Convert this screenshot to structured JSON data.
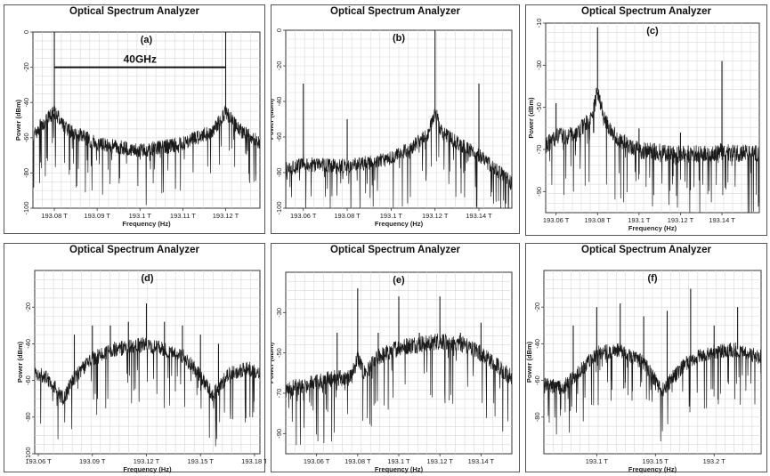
{
  "window_title": "Optical Spectrum Analyzer",
  "chart_data": [
    {
      "type": "line",
      "panel_label": "(a)",
      "title": "Optical Spectrum Analyzer",
      "xlabel": "Frequency (Hz)",
      "ylabel": "Power (dBm)",
      "xlim": [
        193.075,
        193.128
      ],
      "ylim": [
        -100,
        0
      ],
      "xticks": [
        193.08,
        193.09,
        193.1,
        193.11,
        193.12
      ],
      "xtick_labels": [
        "193.08 T",
        "193.09 T",
        "193.1 T",
        "193.11 T",
        "193.12 T"
      ],
      "yticks": [
        0,
        -20,
        -40,
        -60,
        -80,
        -100
      ],
      "ytick_labels": [
        "0",
        "-20",
        "-40",
        "-60",
        "-80",
        "-100"
      ],
      "grid": true,
      "noise_floor": [
        [
          193.075,
          -58
        ],
        [
          193.08,
          -45
        ],
        [
          193.083,
          -55
        ],
        [
          193.09,
          -63
        ],
        [
          193.1,
          -67
        ],
        [
          193.11,
          -63
        ],
        [
          193.117,
          -56
        ],
        [
          193.12,
          -45
        ],
        [
          193.123,
          -55
        ],
        [
          193.128,
          -62
        ]
      ],
      "peaks": [
        {
          "x": 193.08,
          "y": 0
        },
        {
          "x": 193.12,
          "y": 0
        }
      ],
      "annotation": {
        "text": "40GHz",
        "from": 193.08,
        "to": 193.12,
        "y": -20
      }
    },
    {
      "type": "line",
      "panel_label": "(b)",
      "title": "Optical Spectrum Analyzer",
      "xlabel": "Frequency (Hz)",
      "ylabel": "Power (dBm)",
      "xlim": [
        193.052,
        193.155
      ],
      "ylim": [
        -100,
        0
      ],
      "xticks": [
        193.06,
        193.08,
        193.1,
        193.12,
        193.14
      ],
      "xtick_labels": [
        "193.06 T",
        "193.08 T",
        "193.1 T",
        "193.12 T",
        "193.14 T"
      ],
      "yticks": [
        0,
        -20,
        -40,
        -60,
        -80,
        -100
      ],
      "ytick_labels": [
        "0",
        "-20",
        "-40",
        "-60",
        "-80",
        "-100"
      ],
      "grid": true,
      "noise_floor": [
        [
          193.052,
          -78
        ],
        [
          193.06,
          -75
        ],
        [
          193.08,
          -76
        ],
        [
          193.1,
          -72
        ],
        [
          193.11,
          -65
        ],
        [
          193.117,
          -58
        ],
        [
          193.12,
          -45
        ],
        [
          193.123,
          -57
        ],
        [
          193.13,
          -63
        ],
        [
          193.14,
          -70
        ],
        [
          193.15,
          -80
        ],
        [
          193.155,
          -86
        ]
      ],
      "peaks": [
        {
          "x": 193.06,
          "y": -30
        },
        {
          "x": 193.08,
          "y": -50
        },
        {
          "x": 193.12,
          "y": 0
        },
        {
          "x": 193.14,
          "y": -30
        }
      ]
    },
    {
      "type": "line",
      "panel_label": "(c)",
      "title": "Optical Spectrum Analyzer",
      "xlabel": "Frequency (Hz)",
      "ylabel": "Power (dBm)",
      "xlim": [
        193.055,
        193.158
      ],
      "ylim": [
        -100,
        -10
      ],
      "xticks": [
        193.06,
        193.08,
        193.1,
        193.12,
        193.14
      ],
      "xtick_labels": [
        "193.06 T",
        "193.08 T",
        "193.1 T",
        "193.12 T",
        "193.14 T"
      ],
      "yticks": [
        -10,
        -30,
        -50,
        -70,
        -90
      ],
      "ytick_labels": [
        "-10",
        "-30",
        "-50",
        "-70",
        "-90"
      ],
      "grid": true,
      "noise_floor": [
        [
          193.055,
          -68
        ],
        [
          193.06,
          -64
        ],
        [
          193.07,
          -62
        ],
        [
          193.077,
          -55
        ],
        [
          193.08,
          -42
        ],
        [
          193.083,
          -55
        ],
        [
          193.09,
          -65
        ],
        [
          193.1,
          -70
        ],
        [
          193.12,
          -72
        ],
        [
          193.14,
          -71
        ],
        [
          193.158,
          -72
        ]
      ],
      "peaks": [
        {
          "x": 193.06,
          "y": -48
        },
        {
          "x": 193.08,
          "y": -12
        },
        {
          "x": 193.1,
          "y": -60
        },
        {
          "x": 193.12,
          "y": -62
        },
        {
          "x": 193.14,
          "y": -28
        }
      ]
    },
    {
      "type": "line",
      "panel_label": "(d)",
      "title": "Optical Spectrum Analyzer",
      "xlabel": "Frequency (Hz)",
      "ylabel": "Power (dBm)",
      "xlim": [
        193.058,
        193.183
      ],
      "ylim": [
        -100,
        0
      ],
      "xticks": [
        193.06,
        193.09,
        193.12,
        193.15,
        193.18
      ],
      "xtick_labels": [
        "193.06 T",
        "193.09 T",
        "193.12 T",
        "193.15 T",
        "193.18 T"
      ],
      "yticks": [
        -20,
        -40,
        -60,
        -80,
        -100
      ],
      "ytick_labels": [
        "-20",
        "-40",
        "-60",
        "-80",
        "-100"
      ],
      "grid": true,
      "noise_floor": [
        [
          193.058,
          -56
        ],
        [
          193.065,
          -58
        ],
        [
          193.07,
          -65
        ],
        [
          193.074,
          -70
        ],
        [
          193.08,
          -58
        ],
        [
          193.09,
          -48
        ],
        [
          193.1,
          -43
        ],
        [
          193.12,
          -40
        ],
        [
          193.14,
          -46
        ],
        [
          193.15,
          -57
        ],
        [
          193.157,
          -68
        ],
        [
          193.165,
          -57
        ],
        [
          193.175,
          -53
        ],
        [
          193.183,
          -55
        ]
      ],
      "peaks": [
        {
          "x": 193.08,
          "y": -35
        },
        {
          "x": 193.09,
          "y": -30
        },
        {
          "x": 193.1,
          "y": -30
        },
        {
          "x": 193.11,
          "y": -28
        },
        {
          "x": 193.12,
          "y": -18
        },
        {
          "x": 193.13,
          "y": -28
        },
        {
          "x": 193.14,
          "y": -30
        },
        {
          "x": 193.15,
          "y": -35
        },
        {
          "x": 193.16,
          "y": -40
        }
      ]
    },
    {
      "type": "line",
      "panel_label": "(e)",
      "title": "Optical Spectrum Analyzer",
      "xlabel": "Frequency (Hz)",
      "ylabel": "Power (dBm)",
      "xlim": [
        193.045,
        193.155
      ],
      "ylim": [
        -100,
        -10
      ],
      "xticks": [
        193.06,
        193.08,
        193.1,
        193.12,
        193.14
      ],
      "xtick_labels": [
        "193.06 T",
        "193.08 T",
        "193.1 T",
        "193.12 T",
        "193.14 T"
      ],
      "yticks": [
        -30,
        -50,
        -70,
        -90
      ],
      "ytick_labels": [
        "-30",
        "-50",
        "-70",
        "-90"
      ],
      "grid": true,
      "noise_floor": [
        [
          193.045,
          -68
        ],
        [
          193.06,
          -64
        ],
        [
          193.07,
          -62
        ],
        [
          193.077,
          -62
        ],
        [
          193.08,
          -52
        ],
        [
          193.083,
          -60
        ],
        [
          193.09,
          -52
        ],
        [
          193.1,
          -47
        ],
        [
          193.12,
          -44
        ],
        [
          193.13,
          -45
        ],
        [
          193.14,
          -50
        ],
        [
          193.15,
          -58
        ],
        [
          193.155,
          -62
        ]
      ],
      "peaks": [
        {
          "x": 193.07,
          "y": -40
        },
        {
          "x": 193.08,
          "y": -18
        },
        {
          "x": 193.09,
          "y": -40
        },
        {
          "x": 193.1,
          "y": -22
        },
        {
          "x": 193.11,
          "y": -40
        },
        {
          "x": 193.12,
          "y": -22
        },
        {
          "x": 193.13,
          "y": -40
        },
        {
          "x": 193.14,
          "y": -35
        }
      ]
    },
    {
      "type": "line",
      "panel_label": "(f)",
      "title": "Optical Spectrum Analyzer",
      "xlabel": "Frequency (Hz)",
      "ylabel": "Power (dBm)",
      "xlim": [
        193.055,
        193.24
      ],
      "ylim": [
        -100,
        0
      ],
      "xticks": [
        193.1,
        193.15,
        193.2
      ],
      "xtick_labels": [
        "193.1 T",
        "193.15 T",
        "193.2 T"
      ],
      "yticks": [
        -20,
        -40,
        -60,
        -80
      ],
      "ytick_labels": [
        "-20",
        "-40",
        "-60",
        "-80"
      ],
      "grid": true,
      "noise_floor": [
        [
          193.055,
          -62
        ],
        [
          193.07,
          -64
        ],
        [
          193.085,
          -55
        ],
        [
          193.1,
          -45
        ],
        [
          193.12,
          -43
        ],
        [
          193.14,
          -50
        ],
        [
          193.15,
          -60
        ],
        [
          193.155,
          -66
        ],
        [
          193.165,
          -58
        ],
        [
          193.18,
          -48
        ],
        [
          193.2,
          -44
        ],
        [
          193.22,
          -43
        ],
        [
          193.24,
          -47
        ]
      ],
      "peaks": [
        {
          "x": 193.08,
          "y": -30
        },
        {
          "x": 193.1,
          "y": -20
        },
        {
          "x": 193.12,
          "y": -18
        },
        {
          "x": 193.14,
          "y": -25
        },
        {
          "x": 193.16,
          "y": -22
        },
        {
          "x": 193.18,
          "y": -10
        },
        {
          "x": 193.2,
          "y": -30
        },
        {
          "x": 193.22,
          "y": -20
        }
      ]
    }
  ]
}
